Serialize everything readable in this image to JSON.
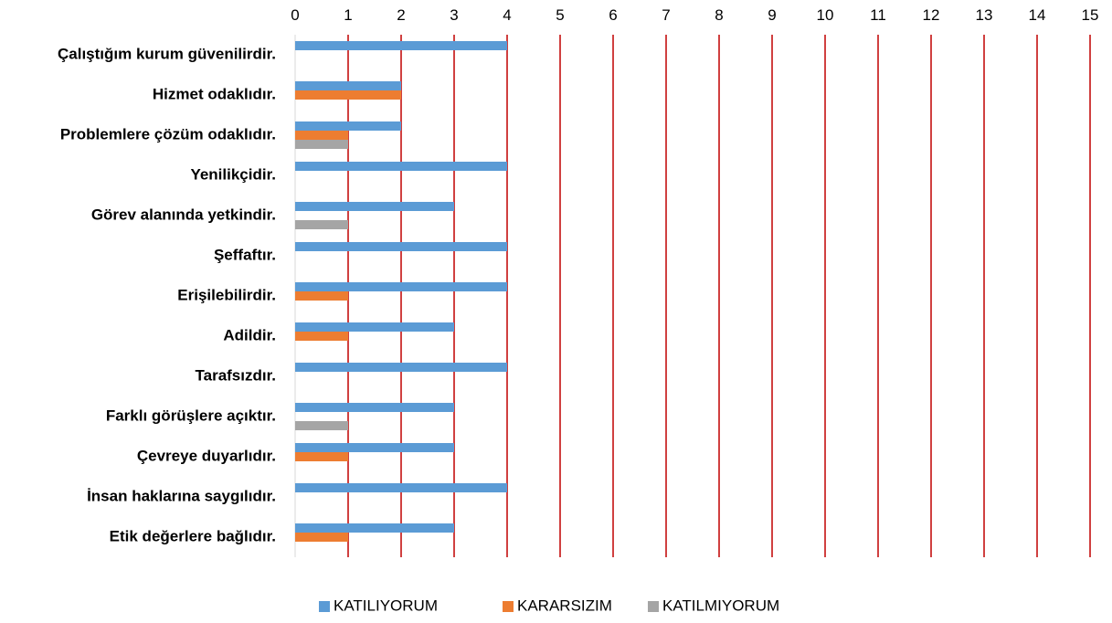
{
  "chart_data": {
    "type": "bar",
    "orientation": "horizontal",
    "categories": [
      "Çalıştığım kurum güvenilirdir.",
      "Hizmet odaklıdır.",
      "Problemlere çözüm odaklıdır.",
      "Yenilikçidir.",
      "Görev alanında yetkindir.",
      "Şeffaftır.",
      "Erişilebilirdir.",
      "Adildir.",
      "Tarafsızdır.",
      "Farklı görüşlere açıktır.",
      "Çevreye duyarlıdır.",
      "İnsan haklarına saygılıdır.",
      "Etik değerlere bağlıdır."
    ],
    "series": [
      {
        "name": "KATILIYORUM",
        "color": "#5B9BD5",
        "values": [
          4,
          2,
          2,
          4,
          3,
          4,
          4,
          3,
          4,
          3,
          3,
          4,
          3
        ]
      },
      {
        "name": "KARARSIZIM",
        "color": "#ED7D31",
        "values": [
          0,
          2,
          1,
          0,
          0,
          0,
          1,
          1,
          0,
          0,
          1,
          0,
          1
        ]
      },
      {
        "name": "KATILMIYORUM",
        "color": "#A5A5A5",
        "values": [
          0,
          0,
          1,
          0,
          1,
          0,
          0,
          0,
          0,
          1,
          0,
          0,
          0
        ]
      }
    ],
    "xlim": [
      0,
      15
    ],
    "xticks": [
      "0",
      "1",
      "2",
      "3",
      "4",
      "5",
      "6",
      "7",
      "8",
      "9",
      "10",
      "11",
      "12",
      "13",
      "14",
      "15"
    ],
    "axis_position": "top",
    "gridlines": true,
    "gridline_color": "#C00000",
    "legend_position": "bottom",
    "title": "",
    "xlabel": "",
    "ylabel": ""
  }
}
